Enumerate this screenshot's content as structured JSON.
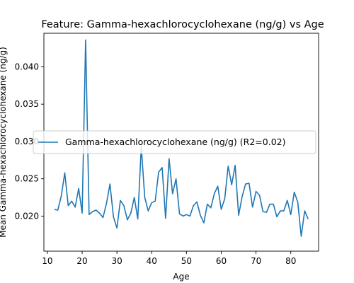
{
  "chart_data": {
    "type": "line",
    "title": "Feature: Gamma-hexachlorocyclohexane (ng/g) vs Age",
    "xlabel": "Age",
    "ylabel": "Mean Gamma-hexachlorocyclohexane (ng/g)",
    "xlim": [
      9,
      88
    ],
    "ylim": [
      0.0153,
      0.0445
    ],
    "xticks": [
      10,
      20,
      30,
      40,
      50,
      60,
      70,
      80
    ],
    "yticks": [
      0.02,
      0.025,
      0.03,
      0.035,
      0.04
    ],
    "ytick_labels": [
      "0.020",
      "0.025",
      "0.030",
      "0.035",
      "0.040"
    ],
    "grid": false,
    "legend_position": "center-left",
    "line_color": "#1f77b4",
    "series": [
      {
        "name": "Gamma-hexachlorocyclohexane (ng/g) (R2=0.02)",
        "x": [
          12,
          13,
          14,
          15,
          16,
          17,
          18,
          19,
          20,
          21,
          22,
          23,
          24,
          25,
          26,
          27,
          28,
          29,
          30,
          31,
          32,
          33,
          34,
          35,
          36,
          37,
          38,
          39,
          40,
          41,
          42,
          43,
          44,
          45,
          46,
          47,
          48,
          49,
          50,
          51,
          52,
          53,
          54,
          55,
          56,
          57,
          58,
          59,
          60,
          61,
          62,
          63,
          64,
          65,
          66,
          67,
          68,
          69,
          70,
          71,
          72,
          73,
          74,
          75,
          76,
          77,
          78,
          79,
          80,
          81,
          82,
          83,
          84,
          85
        ],
        "y": [
          0.0209,
          0.0208,
          0.0227,
          0.0258,
          0.0214,
          0.022,
          0.0212,
          0.0237,
          0.0204,
          0.0436,
          0.0202,
          0.0206,
          0.0208,
          0.0204,
          0.0198,
          0.0217,
          0.0243,
          0.0199,
          0.0184,
          0.0221,
          0.0214,
          0.0195,
          0.0204,
          0.0225,
          0.0196,
          0.0293,
          0.0225,
          0.0207,
          0.0218,
          0.022,
          0.0259,
          0.0265,
          0.0197,
          0.0277,
          0.023,
          0.025,
          0.0203,
          0.02,
          0.0202,
          0.02,
          0.0214,
          0.0219,
          0.0201,
          0.0191,
          0.0216,
          0.0211,
          0.023,
          0.024,
          0.0209,
          0.0223,
          0.0267,
          0.0242,
          0.0268,
          0.0201,
          0.0226,
          0.0243,
          0.0244,
          0.0212,
          0.0233,
          0.0228,
          0.0206,
          0.0205,
          0.0216,
          0.0216,
          0.0199,
          0.0207,
          0.0207,
          0.0221,
          0.0202,
          0.0232,
          0.0219,
          0.0173,
          0.0207,
          0.0196
        ]
      }
    ]
  }
}
